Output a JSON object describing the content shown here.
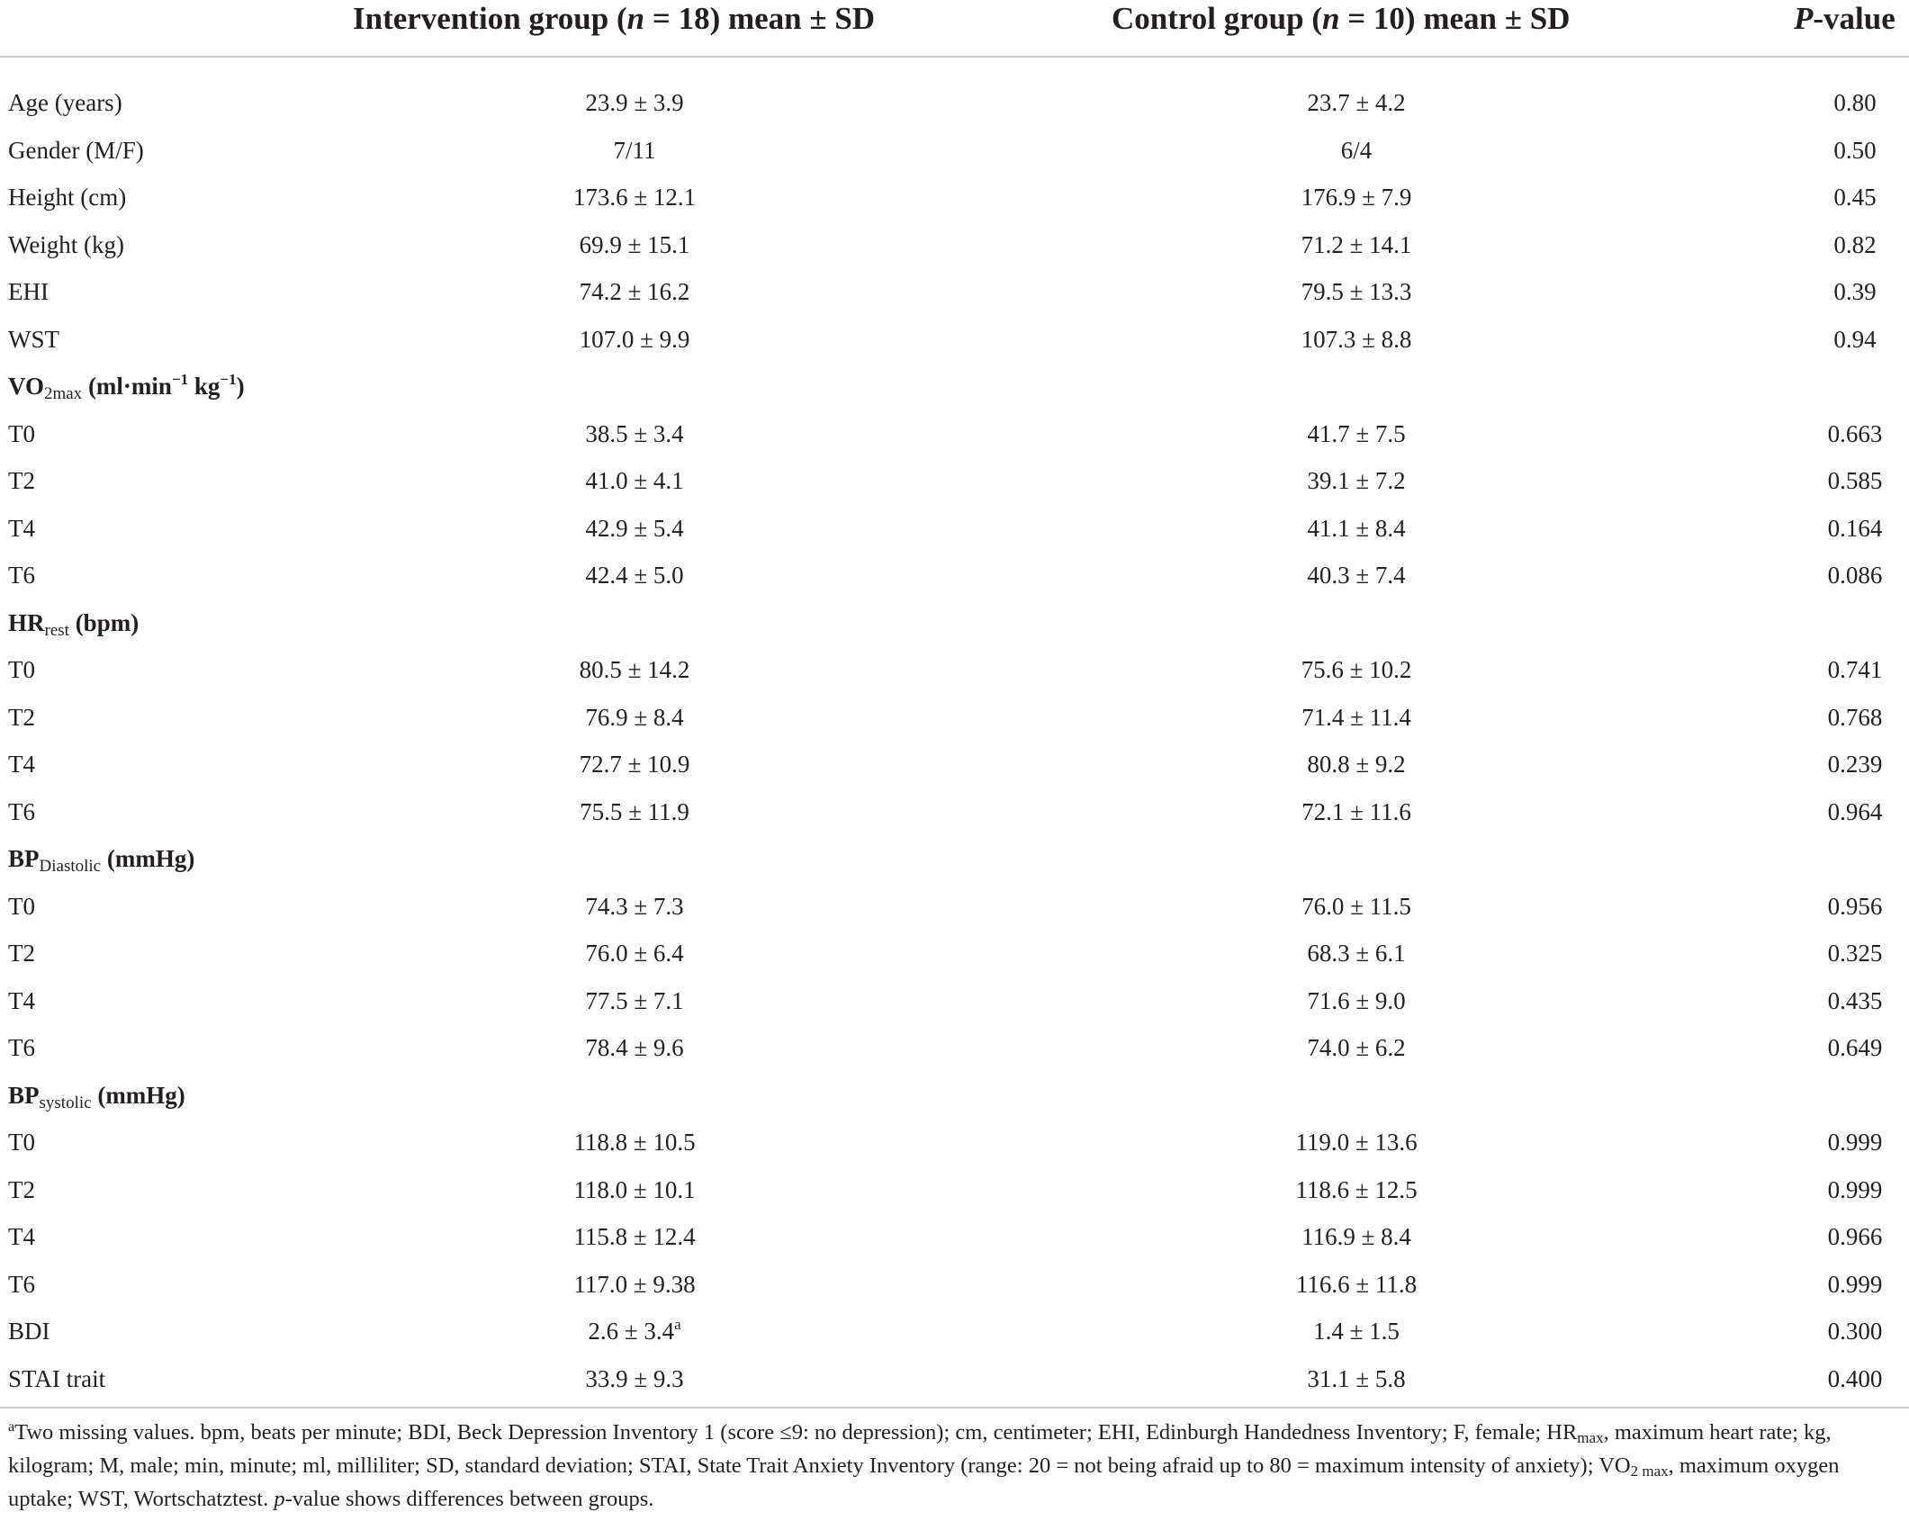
{
  "header": {
    "intervention_prefix": "Intervention group (",
    "intervention_n": "n",
    "intervention_suffix": " = 18) mean ± SD",
    "control_prefix": "Control group (",
    "control_n": "n",
    "control_suffix": " = 10) mean ± SD",
    "p_italic": "P",
    "p_suffix": "-value"
  },
  "rows": [
    {
      "label": "Age (years)",
      "int": "23.9 ± 3.9",
      "ctrl": "23.7 ± 4.2",
      "p": "0.80"
    },
    {
      "label": "Gender (M/F)",
      "int": "7/11",
      "ctrl": "6/4",
      "p": "0.50"
    },
    {
      "label": "Height (cm)",
      "int": "173.6 ± 12.1",
      "ctrl": "176.9 ± 7.9",
      "p": "0.45"
    },
    {
      "label": "Weight (kg)",
      "int": "69.9 ± 15.1",
      "ctrl": "71.2 ± 14.1",
      "p": "0.82"
    },
    {
      "label": "EHI",
      "int": "74.2 ± 16.2",
      "ctrl": "79.5 ± 13.3",
      "p": "0.39"
    },
    {
      "label": "WST",
      "int": "107.0 ± 9.9",
      "ctrl": "107.3 ± 8.8",
      "p": "0.94"
    }
  ],
  "sections": {
    "vo2": {
      "title_main": "VO",
      "title_sub": "2max",
      "title_units_a": " (ml·min",
      "title_sup1": "−1",
      "title_units_b": " kg",
      "title_sup2": "−1",
      "title_units_c": ")",
      "rows": [
        {
          "label": "T0",
          "int": "38.5 ± 3.4",
          "ctrl": "41.7 ± 7.5",
          "p": "0.663"
        },
        {
          "label": "T2",
          "int": "41.0 ± 4.1",
          "ctrl": "39.1 ± 7.2",
          "p": "0.585"
        },
        {
          "label": "T4",
          "int": "42.9 ± 5.4",
          "ctrl": "41.1 ± 8.4",
          "p": "0.164"
        },
        {
          "label": "T6",
          "int": "42.4 ± 5.0",
          "ctrl": "40.3 ± 7.4",
          "p": "0.086"
        }
      ]
    },
    "hr": {
      "title_main": "HR",
      "title_sub": "rest",
      "title_units": " (bpm)",
      "rows": [
        {
          "label": "T0",
          "int": "80.5 ± 14.2",
          "ctrl": "75.6 ± 10.2",
          "p": "0.741"
        },
        {
          "label": "T2",
          "int": "76.9 ± 8.4",
          "ctrl": "71.4 ± 11.4",
          "p": "0.768"
        },
        {
          "label": "T4",
          "int": "72.7 ± 10.9",
          "ctrl": "80.8 ± 9.2",
          "p": "0.239"
        },
        {
          "label": "T6",
          "int": "75.5 ± 11.9",
          "ctrl": "72.1 ± 11.6",
          "p": "0.964"
        }
      ]
    },
    "bpd": {
      "title_main": "BP",
      "title_sub": "Diastolic",
      "title_units": " (mmHg)",
      "rows": [
        {
          "label": "T0",
          "int": "74.3 ± 7.3",
          "ctrl": "76.0 ± 11.5",
          "p": "0.956"
        },
        {
          "label": "T2",
          "int": "76.0 ± 6.4",
          "ctrl": "68.3 ± 6.1",
          "p": "0.325"
        },
        {
          "label": "T4",
          "int": "77.5 ± 7.1",
          "ctrl": "71.6 ± 9.0",
          "p": "0.435"
        },
        {
          "label": "T6",
          "int": "78.4 ± 9.6",
          "ctrl": "74.0 ± 6.2",
          "p": "0.649"
        }
      ]
    },
    "bps": {
      "title_main": "BP",
      "title_sub": "systolic",
      "title_units": " (mmHg)",
      "rows": [
        {
          "label": "T0",
          "int": "118.8 ± 10.5",
          "ctrl": "119.0 ± 13.6",
          "p": "0.999"
        },
        {
          "label": "T2",
          "int": "118.0 ± 10.1",
          "ctrl": "118.6 ± 12.5",
          "p": "0.999"
        },
        {
          "label": "T4",
          "int": "115.8 ± 12.4",
          "ctrl": "116.9 ± 8.4",
          "p": "0.966"
        },
        {
          "label": "T6",
          "int": "117.0 ± 9.38",
          "ctrl": "116.6 ± 11.8",
          "p": "0.999"
        }
      ]
    }
  },
  "tail": {
    "bdi": {
      "label": "BDI",
      "int": "2.6 ± 3.4",
      "int_sup": "a",
      "ctrl": "1.4 ± 1.5",
      "p": "0.300"
    },
    "stai": {
      "label": "STAI trait",
      "int": "33.9 ± 9.3",
      "ctrl": "31.1 ± 5.8",
      "p": "0.400"
    }
  },
  "footnote": {
    "marker": "a",
    "part1": "Two missing values. bpm, beats per minute; BDI, Beck Depression Inventory 1 (score ≤9: no depression); cm, centimeter; EHI, Edinburgh Handedness Inventory; F, female; HR",
    "hr_sub": "max",
    "part2": ", maximum heart rate; kg, kilogram; M, male; min, minute; ml, milliliter; SD, standard deviation; STAI, State Trait Anxiety Inventory (range: 20 = not being afraid up to 80 = maximum intensity of anxiety); VO",
    "vo_sub": "2 max",
    "part3": ", maximum oxygen uptake; WST, Wortschatztest. ",
    "p_italic": "p",
    "part4": "-value shows differences between groups."
  }
}
